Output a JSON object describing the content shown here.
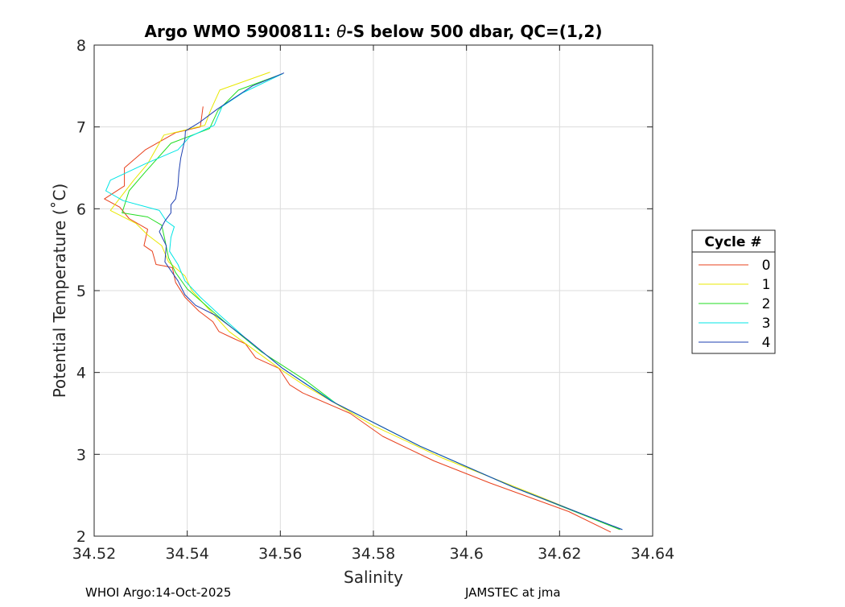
{
  "chart_data": {
    "type": "line",
    "title_main": "Argo WMO 5900811: ",
    "title_theta": "θ",
    "title_rest": "-S below 500 dbar,  QC=(1,2)",
    "xlabel": "Salinity",
    "ylabel": "Potential Temperature (˚C)",
    "xlim": [
      34.52,
      34.64
    ],
    "ylim": [
      2,
      8
    ],
    "xticks": [
      34.52,
      34.54,
      34.56,
      34.58,
      34.6,
      34.62,
      34.64
    ],
    "xtick_labels": [
      "34.52",
      "34.54",
      "34.56",
      "34.58",
      "34.6",
      "34.62",
      "34.64"
    ],
    "yticks": [
      2,
      3,
      4,
      5,
      6,
      7,
      8
    ],
    "ytick_labels": [
      "2",
      "3",
      "4",
      "5",
      "6",
      "7",
      "8"
    ],
    "grid": true,
    "legend": {
      "title": "Cycle #",
      "placement": "right-outside"
    },
    "series": [
      {
        "name": "0",
        "color": "#e8401c",
        "points": [
          [
            34.5434,
            7.25
          ],
          [
            34.5428,
            7.0
          ],
          [
            34.5375,
            6.93
          ],
          [
            34.531,
            6.72
          ],
          [
            34.5265,
            6.5
          ],
          [
            34.5265,
            6.28
          ],
          [
            34.5222,
            6.12
          ],
          [
            34.5255,
            6.02
          ],
          [
            34.5275,
            5.88
          ],
          [
            34.5315,
            5.75
          ],
          [
            34.5307,
            5.55
          ],
          [
            34.5325,
            5.48
          ],
          [
            34.5333,
            5.32
          ],
          [
            34.5352,
            5.3
          ],
          [
            34.5368,
            5.28
          ],
          [
            34.5375,
            5.1
          ],
          [
            34.5395,
            4.92
          ],
          [
            34.5425,
            4.75
          ],
          [
            34.5455,
            4.62
          ],
          [
            34.5468,
            4.5
          ],
          [
            34.5498,
            4.42
          ],
          [
            34.5525,
            4.35
          ],
          [
            34.5547,
            4.18
          ],
          [
            34.5597,
            4.05
          ],
          [
            34.562,
            3.85
          ],
          [
            34.5648,
            3.75
          ],
          [
            34.575,
            3.5
          ],
          [
            34.582,
            3.22
          ],
          [
            34.593,
            2.92
          ],
          [
            34.605,
            2.65
          ],
          [
            34.622,
            2.3
          ],
          [
            34.631,
            2.05
          ]
        ]
      },
      {
        "name": "1",
        "color": "#e8e800",
        "points": [
          [
            34.5578,
            7.67
          ],
          [
            34.547,
            7.45
          ],
          [
            34.545,
            7.2
          ],
          [
            34.5438,
            7.02
          ],
          [
            34.535,
            6.9
          ],
          [
            34.5315,
            6.55
          ],
          [
            34.5285,
            6.35
          ],
          [
            34.5235,
            5.98
          ],
          [
            34.529,
            5.82
          ],
          [
            34.5315,
            5.68
          ],
          [
            34.5345,
            5.55
          ],
          [
            34.536,
            5.35
          ],
          [
            34.5395,
            5.18
          ],
          [
            34.541,
            5.0
          ],
          [
            34.5458,
            4.7
          ],
          [
            34.549,
            4.5
          ],
          [
            34.555,
            4.25
          ],
          [
            34.5605,
            4.02
          ],
          [
            34.565,
            3.85
          ],
          [
            34.58,
            3.35
          ],
          [
            34.595,
            2.95
          ],
          [
            34.615,
            2.5
          ],
          [
            34.633,
            2.08
          ]
        ]
      },
      {
        "name": "2",
        "color": "#22dd22",
        "points": [
          [
            34.5605,
            7.65
          ],
          [
            34.551,
            7.45
          ],
          [
            34.5466,
            7.2
          ],
          [
            34.5448,
            6.98
          ],
          [
            34.5365,
            6.8
          ],
          [
            34.531,
            6.45
          ],
          [
            34.5275,
            6.22
          ],
          [
            34.526,
            5.95
          ],
          [
            34.5315,
            5.9
          ],
          [
            34.5345,
            5.8
          ],
          [
            34.5352,
            5.62
          ],
          [
            34.536,
            5.4
          ],
          [
            34.5375,
            5.22
          ],
          [
            34.54,
            5.02
          ],
          [
            34.544,
            4.82
          ],
          [
            34.548,
            4.62
          ],
          [
            34.556,
            4.25
          ],
          [
            34.5655,
            3.9
          ],
          [
            34.572,
            3.62
          ],
          [
            34.59,
            3.1
          ],
          [
            34.61,
            2.6
          ],
          [
            34.633,
            2.08
          ]
        ]
      },
      {
        "name": "3",
        "color": "#00e5e5",
        "points": [
          [
            34.5605,
            7.65
          ],
          [
            34.552,
            7.42
          ],
          [
            34.5475,
            7.25
          ],
          [
            34.5458,
            7.02
          ],
          [
            34.5405,
            6.88
          ],
          [
            34.538,
            6.72
          ],
          [
            34.531,
            6.55
          ],
          [
            34.5235,
            6.35
          ],
          [
            34.5225,
            6.22
          ],
          [
            34.5262,
            6.1
          ],
          [
            34.534,
            5.98
          ],
          [
            34.5355,
            5.85
          ],
          [
            34.5372,
            5.78
          ],
          [
            34.5365,
            5.65
          ],
          [
            34.5362,
            5.48
          ],
          [
            34.538,
            5.32
          ],
          [
            34.5395,
            5.12
          ],
          [
            34.5428,
            4.92
          ],
          [
            34.547,
            4.7
          ],
          [
            34.5525,
            4.42
          ],
          [
            34.5605,
            4.05
          ],
          [
            34.572,
            3.62
          ],
          [
            34.59,
            3.1
          ],
          [
            34.61,
            2.6
          ],
          [
            34.6335,
            2.08
          ]
        ]
      },
      {
        "name": "4",
        "color": "#1e3fb0",
        "points": [
          [
            34.5608,
            7.66
          ],
          [
            34.554,
            7.5
          ],
          [
            34.5465,
            7.22
          ],
          [
            34.5425,
            7.05
          ],
          [
            34.5396,
            6.95
          ],
          [
            34.5395,
            6.85
          ],
          [
            34.5386,
            6.62
          ],
          [
            34.5382,
            6.45
          ],
          [
            34.538,
            6.28
          ],
          [
            34.5375,
            6.12
          ],
          [
            34.5365,
            6.05
          ],
          [
            34.5365,
            5.95
          ],
          [
            34.5352,
            5.85
          ],
          [
            34.534,
            5.72
          ],
          [
            34.5355,
            5.55
          ],
          [
            34.5352,
            5.35
          ],
          [
            34.538,
            5.12
          ],
          [
            34.5395,
            4.95
          ],
          [
            34.5418,
            4.82
          ],
          [
            34.546,
            4.7
          ],
          [
            34.553,
            4.4
          ],
          [
            34.5605,
            4.05
          ],
          [
            34.571,
            3.65
          ],
          [
            34.59,
            3.1
          ],
          [
            34.61,
            2.6
          ],
          [
            34.6335,
            2.08
          ]
        ]
      }
    ]
  },
  "footer": {
    "left": "WHOI Argo:14-Oct-2025",
    "right": "JAMSTEC at jma"
  }
}
